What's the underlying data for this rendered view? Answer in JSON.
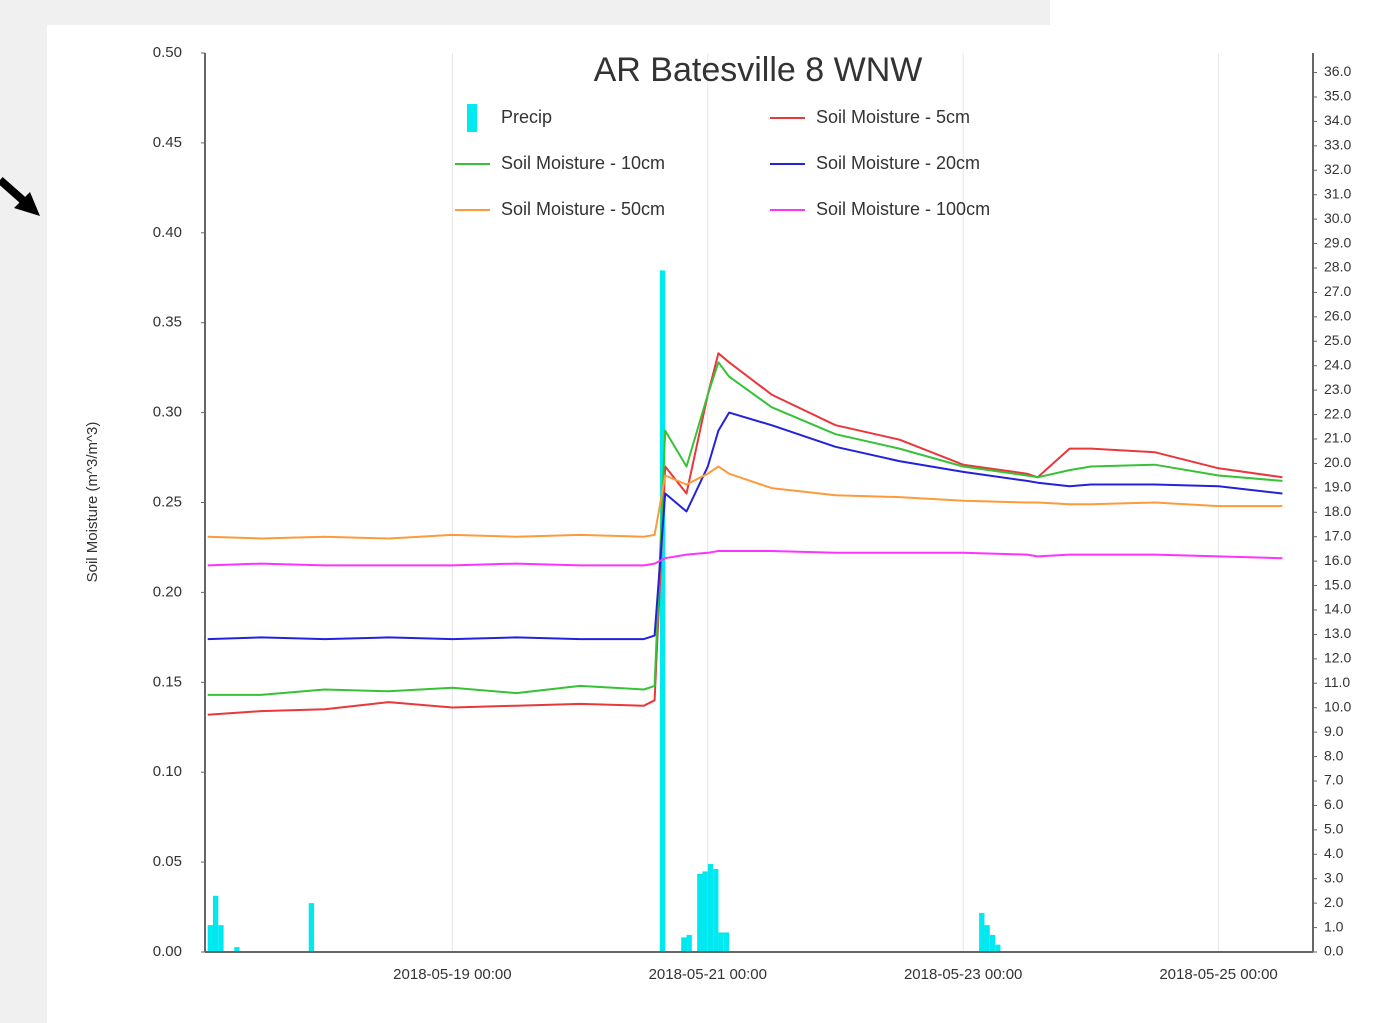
{
  "chart_data": {
    "type": "line",
    "title": "AR Batesville 8 WNW",
    "ylabel": "Soil Moisture (m^3/m^3)",
    "x": [
      "2018-05-17 02:00",
      "2018-05-17 12:00",
      "2018-05-18 00:00",
      "2018-05-18 12:00",
      "2018-05-19 00:00",
      "2018-05-19 12:00",
      "2018-05-20 00:00",
      "2018-05-20 12:00",
      "2018-05-20 14:00",
      "2018-05-20 16:00",
      "2018-05-20 20:00",
      "2018-05-21 00:00",
      "2018-05-21 02:00",
      "2018-05-21 04:00",
      "2018-05-21 12:00",
      "2018-05-22 00:00",
      "2018-05-22 12:00",
      "2018-05-23 00:00",
      "2018-05-23 12:00",
      "2018-05-23 14:00",
      "2018-05-23 20:00",
      "2018-05-24 00:00",
      "2018-05-24 12:00",
      "2018-05-25 00:00",
      "2018-05-25 12:00"
    ],
    "xlim": [
      "2018-05-17 01:30",
      "2018-05-25 17:45"
    ],
    "xticks": [
      "2018-05-19 00:00",
      "2018-05-21 00:00",
      "2018-05-23 00:00",
      "2018-05-25 00:00"
    ],
    "ylim": [
      0,
      0.5
    ],
    "yticks": [
      {
        "value": 0,
        "label": "0.00"
      },
      {
        "value": 0.05,
        "label": "0.05"
      },
      {
        "value": 0.1,
        "label": "0.10"
      },
      {
        "value": 0.15,
        "label": "0.15"
      },
      {
        "value": 0.2,
        "label": "0.20"
      },
      {
        "value": 0.25,
        "label": "0.25"
      },
      {
        "value": 0.3,
        "label": "0.30"
      },
      {
        "value": 0.35,
        "label": "0.35"
      },
      {
        "value": 0.4,
        "label": "0.40"
      },
      {
        "value": 0.45,
        "label": "0.45"
      },
      {
        "value": 0.5,
        "label": "0.50"
      }
    ],
    "y2lim": [
      0,
      36.8
    ],
    "y2ticks": [
      {
        "value": 0,
        "label": "0.0"
      },
      {
        "value": 1,
        "label": "1.0"
      },
      {
        "value": 2,
        "label": "2.0"
      },
      {
        "value": 3,
        "label": "3.0"
      },
      {
        "value": 4,
        "label": "4.0"
      },
      {
        "value": 5,
        "label": "5.0"
      },
      {
        "value": 6,
        "label": "6.0"
      },
      {
        "value": 7,
        "label": "7.0"
      },
      {
        "value": 8,
        "label": "8.0"
      },
      {
        "value": 9,
        "label": "9.0"
      },
      {
        "value": 10,
        "label": "10.0"
      },
      {
        "value": 11,
        "label": "11.0"
      },
      {
        "value": 12,
        "label": "12.0"
      },
      {
        "value": 13,
        "label": "13.0"
      },
      {
        "value": 14,
        "label": "14.0"
      },
      {
        "value": 15,
        "label": "15.0"
      },
      {
        "value": 16,
        "label": "16.0"
      },
      {
        "value": 17,
        "label": "17.0"
      },
      {
        "value": 18,
        "label": "18.0"
      },
      {
        "value": 19,
        "label": "19.0"
      },
      {
        "value": 20,
        "label": "20.0"
      },
      {
        "value": 21,
        "label": "21.0"
      },
      {
        "value": 22,
        "label": "22.0"
      },
      {
        "value": 23,
        "label": "23.0"
      },
      {
        "value": 24,
        "label": "24.0"
      },
      {
        "value": 25,
        "label": "25.0"
      },
      {
        "value": 26,
        "label": "26.0"
      },
      {
        "value": 27,
        "label": "27.0"
      },
      {
        "value": 28,
        "label": "28.0"
      },
      {
        "value": 29,
        "label": "29.0"
      },
      {
        "value": 30,
        "label": "30.0"
      },
      {
        "value": 31,
        "label": "31.0"
      },
      {
        "value": 32,
        "label": "32.0"
      },
      {
        "value": 33,
        "label": "33.0"
      },
      {
        "value": 34,
        "label": "34.0"
      },
      {
        "value": 35,
        "label": "35.0"
      },
      {
        "value": 36,
        "label": "36.0"
      }
    ],
    "grid": "x",
    "series": [
      {
        "name": "Precip",
        "type": "bar",
        "axis": "y2",
        "color": "#00e8f0",
        "x": [
          "2018-05-17 02:00",
          "2018-05-17 03:00",
          "2018-05-17 04:00",
          "2018-05-17 07:00",
          "2018-05-17 21:00",
          "2018-05-20 15:00",
          "2018-05-20 19:00",
          "2018-05-20 20:00",
          "2018-05-20 22:00",
          "2018-05-20 23:00",
          "2018-05-21 00:00",
          "2018-05-21 01:00",
          "2018-05-21 02:00",
          "2018-05-21 03:00",
          "2018-05-23 03:00",
          "2018-05-23 04:00",
          "2018-05-23 05:00",
          "2018-05-23 06:00"
        ],
        "values": [
          1.1,
          2.3,
          1.1,
          0.2,
          2.0,
          27.9,
          0.6,
          0.7,
          3.2,
          3.3,
          3.6,
          3.4,
          0.8,
          0.8,
          1.6,
          1.1,
          0.7,
          0.3
        ]
      },
      {
        "name": "Soil Moisture - 5cm",
        "color": "#e8383c",
        "values": [
          0.132,
          0.134,
          0.135,
          0.139,
          0.136,
          0.137,
          0.138,
          0.137,
          0.14,
          0.27,
          0.255,
          0.31,
          0.333,
          0.328,
          0.31,
          0.293,
          0.285,
          0.271,
          0.266,
          0.264,
          0.28,
          0.28,
          0.278,
          0.269,
          0.264
        ]
      },
      {
        "name": "Soil Moisture - 10cm",
        "color": "#36c236",
        "values": [
          0.143,
          0.143,
          0.146,
          0.145,
          0.147,
          0.144,
          0.148,
          0.146,
          0.148,
          0.29,
          0.27,
          0.31,
          0.328,
          0.32,
          0.303,
          0.288,
          0.28,
          0.27,
          0.265,
          0.264,
          0.268,
          0.27,
          0.271,
          0.265,
          0.262
        ]
      },
      {
        "name": "Soil Moisture - 20cm",
        "color": "#2222dd",
        "values": [
          0.174,
          0.175,
          0.174,
          0.175,
          0.174,
          0.175,
          0.174,
          0.174,
          0.176,
          0.255,
          0.245,
          0.27,
          0.29,
          0.3,
          0.293,
          0.281,
          0.273,
          0.267,
          0.262,
          0.261,
          0.259,
          0.26,
          0.26,
          0.259,
          0.255
        ]
      },
      {
        "name": "Soil Moisture - 50cm",
        "color": "#ff9a3c",
        "values": [
          0.231,
          0.23,
          0.231,
          0.23,
          0.232,
          0.231,
          0.232,
          0.231,
          0.232,
          0.265,
          0.26,
          0.266,
          0.27,
          0.266,
          0.258,
          0.254,
          0.253,
          0.251,
          0.25,
          0.25,
          0.249,
          0.249,
          0.25,
          0.248,
          0.248
        ]
      },
      {
        "name": "Soil Moisture - 100cm",
        "color": "#ff33ff",
        "values": [
          0.215,
          0.216,
          0.215,
          0.215,
          0.215,
          0.216,
          0.215,
          0.215,
          0.216,
          0.219,
          0.221,
          0.222,
          0.223,
          0.223,
          0.223,
          0.222,
          0.222,
          0.222,
          0.221,
          0.22,
          0.221,
          0.221,
          0.221,
          0.22,
          0.219
        ]
      }
    ]
  }
}
